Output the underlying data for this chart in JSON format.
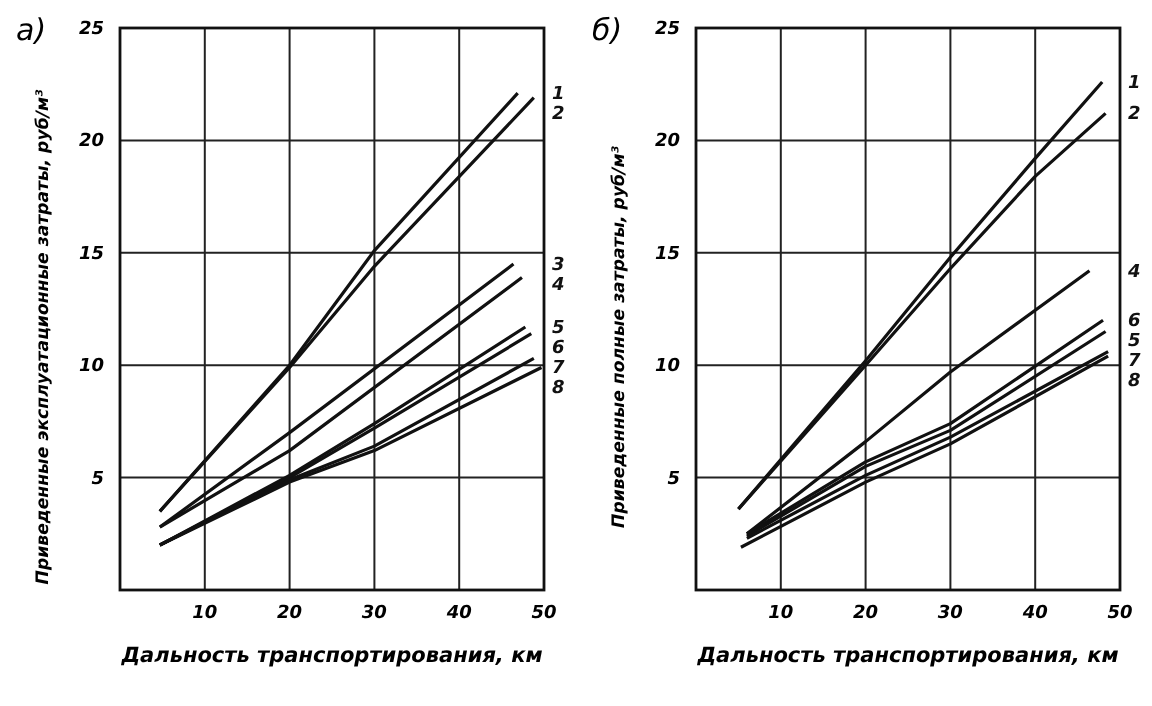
{
  "chart_data": [
    {
      "type": "line",
      "title": "а)",
      "xlabel": "Дальность транспортирования, км",
      "ylabel": "Приведенные эксплуатационные затраты, руб/м³",
      "xlim": [
        0,
        50
      ],
      "ylim": [
        0,
        25
      ],
      "xticks": [
        10,
        20,
        30,
        40,
        50
      ],
      "yticks": [
        5,
        10,
        15,
        20,
        25
      ],
      "grid": true,
      "legend": false,
      "marker": "none",
      "line_style": "solid",
      "series": [
        {
          "name": "1",
          "color": "#111111",
          "x": [
            4.7,
            20,
            30,
            46.9
          ],
          "values": [
            3.5,
            10,
            15.1,
            22.1
          ]
        },
        {
          "name": "2",
          "color": "#111111",
          "x": [
            4.7,
            20,
            30,
            48.8
          ],
          "values": [
            3.5,
            9.9,
            14.4,
            21.9
          ]
        },
        {
          "name": "3",
          "color": "#111111",
          "x": [
            4.7,
            20,
            46.4
          ],
          "values": [
            2.8,
            7.0,
            14.5
          ]
        },
        {
          "name": "4",
          "color": "#111111",
          "x": [
            4.7,
            20,
            47.4
          ],
          "values": [
            2.8,
            6.2,
            13.9
          ]
        },
        {
          "name": "5",
          "color": "#111111",
          "x": [
            4.7,
            20,
            30,
            47.8
          ],
          "values": [
            2.0,
            5.1,
            7.4,
            11.7
          ]
        },
        {
          "name": "6",
          "color": "#111111",
          "x": [
            4.7,
            20,
            30,
            48.5
          ],
          "values": [
            2.0,
            5.0,
            7.2,
            11.4
          ]
        },
        {
          "name": "7",
          "color": "#111111",
          "x": [
            4.7,
            20,
            30,
            48.8
          ],
          "values": [
            2.0,
            4.9,
            6.4,
            10.3
          ]
        },
        {
          "name": "8",
          "color": "#111111",
          "x": [
            4.7,
            20,
            30,
            49.7
          ],
          "values": [
            2.0,
            4.8,
            6.2,
            9.9
          ]
        }
      ]
    },
    {
      "type": "line",
      "title": "б)",
      "xlabel": "Дальность транспортирования, км",
      "ylabel": "Приведенные полные затраты, руб/м³",
      "xlim": [
        0,
        50
      ],
      "ylim": [
        0,
        25
      ],
      "xticks": [
        10,
        20,
        30,
        40,
        50
      ],
      "yticks": [
        5,
        10,
        15,
        20,
        25
      ],
      "grid": true,
      "legend": false,
      "marker": "none",
      "line_style": "solid",
      "series": [
        {
          "name": "1",
          "color": "#111111",
          "x": [
            5,
            20,
            30,
            40,
            47.9
          ],
          "values": [
            3.6,
            10.2,
            14.8,
            19.2,
            22.6
          ]
        },
        {
          "name": "2",
          "color": "#111111",
          "x": [
            5,
            20,
            30,
            40,
            48.3
          ],
          "values": [
            3.6,
            10.0,
            14.3,
            18.4,
            21.2
          ]
        },
        {
          "name": "4",
          "color": "#111111",
          "x": [
            6,
            20,
            30,
            46.4
          ],
          "values": [
            2.5,
            6.6,
            9.7,
            14.2
          ]
        },
        {
          "name": "6",
          "color": "#111111",
          "x": [
            6,
            20,
            30,
            48
          ],
          "values": [
            2.5,
            5.7,
            7.4,
            12.0
          ]
        },
        {
          "name": "5",
          "color": "#111111",
          "x": [
            6,
            20,
            30,
            48.3
          ],
          "values": [
            2.4,
            5.5,
            7.1,
            11.5
          ]
        },
        {
          "name": "7",
          "color": "#111111",
          "x": [
            6,
            20,
            30,
            48.6
          ],
          "values": [
            2.3,
            5.1,
            6.8,
            10.6
          ]
        },
        {
          "name": "8",
          "color": "#111111",
          "x": [
            5.3,
            20,
            30,
            48.6
          ],
          "values": [
            1.9,
            4.8,
            6.5,
            10.4
          ]
        }
      ]
    }
  ]
}
